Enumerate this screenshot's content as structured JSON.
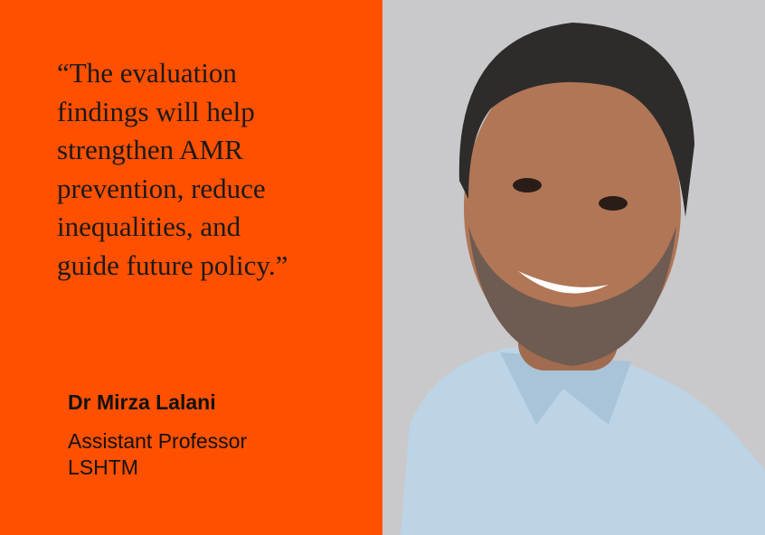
{
  "quote": {
    "lines": [
      "“The evaluation",
      "findings will help",
      "strengthen AMR",
      "prevention, reduce",
      "inequalities, and",
      "guide future policy.”"
    ]
  },
  "person": {
    "name": "Dr Mirza Lalani",
    "role": "Assistant Professor",
    "organisation": "LSHTM"
  }
}
